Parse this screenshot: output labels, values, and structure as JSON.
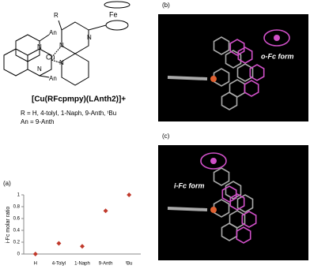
{
  "structure": {
    "fe": "Fe",
    "r": "R",
    "cu": "Cu",
    "an_top": "An",
    "an_bottom": "An",
    "n1": "N",
    "n2": "N",
    "n3": "N",
    "n4": "N",
    "n5": "N",
    "formula": "[Cu(RFcpmpy)(LAnth2)]+",
    "r_definition": "R = H, 4-tolyl, 1-Naph, 9-Anth, ᵗBu",
    "an_definition": "An = 9-Anth"
  },
  "panels": {
    "a": "(a)",
    "b": "(b)",
    "c": "(c)",
    "b_caption": "o-Fc form",
    "c_caption": "i-Fc form"
  },
  "chart_data": {
    "type": "scatter",
    "y_label": "i-Fc molar ratio",
    "categories": [
      "H",
      "4-Tolyl",
      "1-Naph",
      "9-Anth",
      "ᵗBu"
    ],
    "values": [
      0,
      0.18,
      0.13,
      0.73,
      1.0
    ],
    "color": "#c0392b",
    "ylim": [
      0,
      1
    ],
    "yticks": [
      0,
      0.2,
      0.4,
      0.6,
      0.8,
      1
    ],
    "grid": false
  }
}
